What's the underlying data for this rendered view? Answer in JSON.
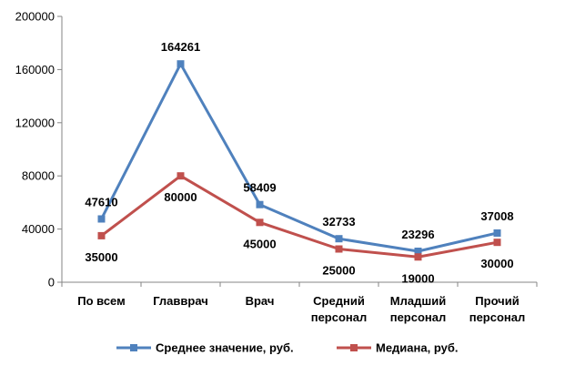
{
  "chart_data": {
    "type": "line",
    "title": "",
    "xlabel": "",
    "ylabel": "",
    "ylim": [
      0,
      200000
    ],
    "yticks": [
      0,
      40000,
      80000,
      120000,
      160000,
      200000
    ],
    "grid": false,
    "legend_position": "bottom",
    "categories": [
      [
        "По всем"
      ],
      [
        "Главврач"
      ],
      [
        "Врач"
      ],
      [
        "Средний",
        "персонал"
      ],
      [
        "Младший",
        "персонал"
      ],
      [
        "Прочий",
        "персонал"
      ]
    ],
    "series": [
      {
        "name": "Среднее значение, руб.",
        "color": "#4f81bd",
        "values": [
          47610,
          164261,
          58409,
          32733,
          23296,
          37008
        ],
        "label_position": [
          "above",
          "above",
          "above",
          "above",
          "above",
          "above"
        ]
      },
      {
        "name": "Медиана, руб.",
        "color": "#c0504d",
        "values": [
          35000,
          80000,
          45000,
          25000,
          19000,
          30000
        ],
        "label_position": [
          "below",
          "below",
          "below",
          "below",
          "below",
          "below"
        ]
      }
    ]
  }
}
